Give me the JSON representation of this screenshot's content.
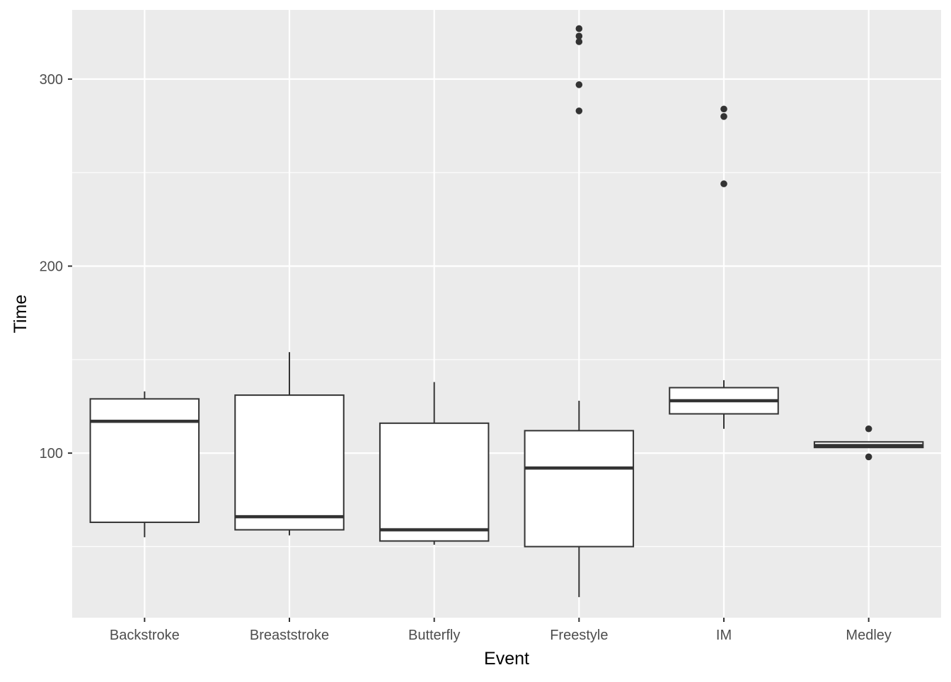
{
  "chart_data": {
    "type": "boxplot",
    "title": "",
    "xlabel": "Event",
    "ylabel": "Time",
    "categories": [
      "Backstroke",
      "Breaststroke",
      "Butterfly",
      "Freestyle",
      "IM",
      "Medley"
    ],
    "ylim": [
      12,
      337
    ],
    "yticks": [
      100,
      200,
      300
    ],
    "grid": true,
    "boxes": [
      {
        "category": "Backstroke",
        "whisker_low": 55,
        "q1": 63,
        "median": 117,
        "q3": 129,
        "whisker_high": 133,
        "outliers": []
      },
      {
        "category": "Breaststroke",
        "whisker_low": 56,
        "q1": 59,
        "median": 66,
        "q3": 131,
        "whisker_high": 154,
        "outliers": []
      },
      {
        "category": "Butterfly",
        "whisker_low": 51,
        "q1": 53,
        "median": 59,
        "q3": 116,
        "whisker_high": 138,
        "outliers": []
      },
      {
        "category": "Freestyle",
        "whisker_low": 23,
        "q1": 50,
        "median": 92,
        "q3": 112,
        "whisker_high": 128,
        "outliers": [
          283,
          297,
          320,
          323,
          327
        ]
      },
      {
        "category": "IM",
        "whisker_low": 113,
        "q1": 121,
        "median": 128,
        "q3": 135,
        "whisker_high": 139,
        "outliers": [
          244,
          280,
          284
        ]
      },
      {
        "category": "Medley",
        "whisker_low": 103,
        "q1": 103,
        "median": 104,
        "q3": 106,
        "whisker_high": 106,
        "outliers": [
          98,
          113
        ]
      }
    ]
  }
}
